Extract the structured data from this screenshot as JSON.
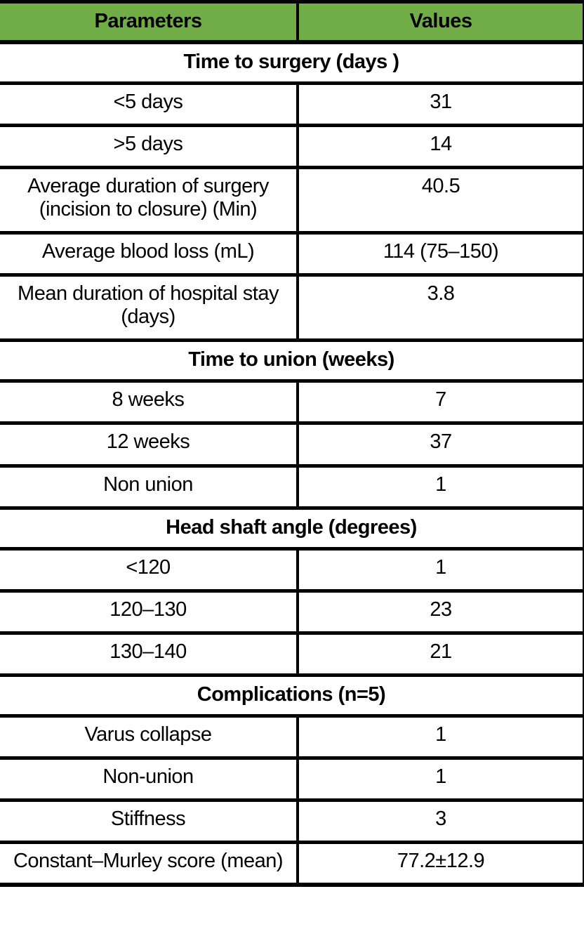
{
  "table": {
    "columns": [
      "Parameters",
      "Values"
    ],
    "sections": [
      {
        "title": "Time to surgery (days )",
        "rows": [
          {
            "parameter": "<5 days",
            "value": "31"
          },
          {
            "parameter": ">5 days",
            "value": "14"
          },
          {
            "parameter": "Average duration of surgery (incision to closure) (Min)",
            "value": "40.5"
          },
          {
            "parameter": "Average blood loss (mL)",
            "value": "114 (75–150)"
          },
          {
            "parameter": "Mean duration of hospital stay (days)",
            "value": "3.8"
          }
        ]
      },
      {
        "title": "Time to union (weeks)",
        "rows": [
          {
            "parameter": "8 weeks",
            "value": "7"
          },
          {
            "parameter": "12 weeks",
            "value": "37"
          },
          {
            "parameter": "Non union",
            "value": "1"
          }
        ]
      },
      {
        "title": "Head shaft angle (degrees)",
        "rows": [
          {
            "parameter": "<120",
            "value": "1"
          },
          {
            "parameter": "120–130",
            "value": "23"
          },
          {
            "parameter": "130–140",
            "value": "21"
          }
        ]
      },
      {
        "title": "Complications (n=5)",
        "rows": [
          {
            "parameter": "Varus collapse",
            "value": "1"
          },
          {
            "parameter": "Non-union",
            "value": "1"
          },
          {
            "parameter": "Stiffness",
            "value": "3"
          },
          {
            "parameter": "Constant–Murley score (mean)",
            "value": "77.2±12.9"
          }
        ]
      }
    ],
    "colors": {
      "header_bg": "#70ad47",
      "border": "#000000",
      "text": "#000000"
    }
  }
}
